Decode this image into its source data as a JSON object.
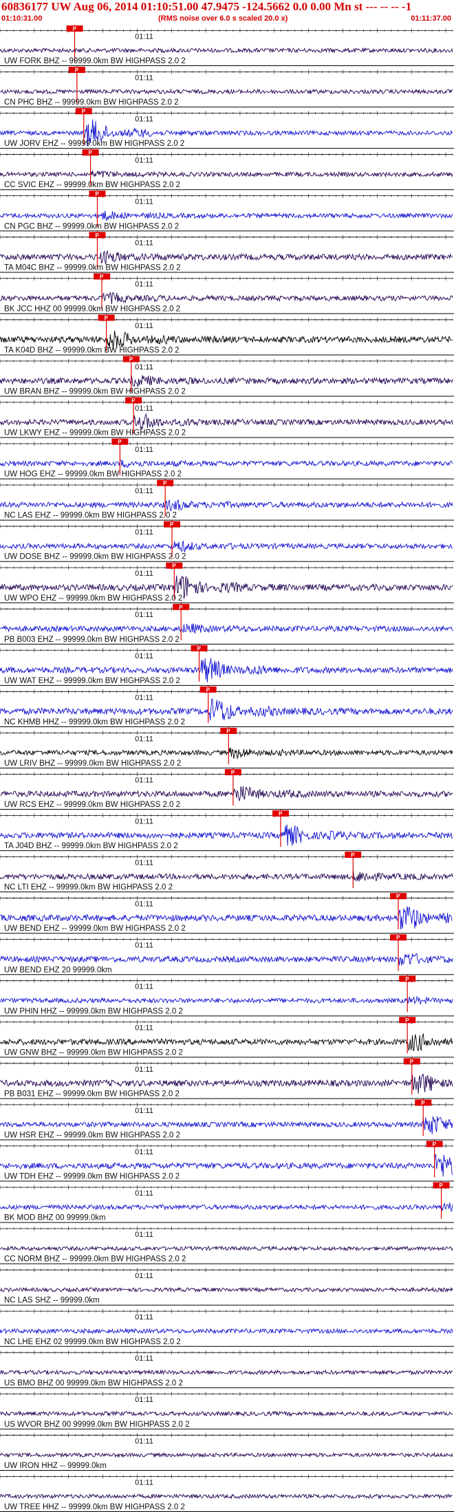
{
  "header": {
    "title": "60836177 UW Aug 06, 2014 01:10:51.00   47.9475 -124.5662  0.0 0.00 Mn st --- -- --   -1",
    "start_time": "01:10:31.00",
    "note": "(RMS noise over 6.0 s scaled 20.0 x)",
    "end_time": "01:11:37.00"
  },
  "colors": {
    "blue": "#1010d0",
    "dark": "#200050",
    "black": "#000000",
    "pick": "#e00000"
  },
  "chart_data": {
    "type": "line",
    "time_range": [
      "01:10:31.00",
      "01:11:37.00"
    ],
    "minute_mark": "01:11",
    "pick_label": "P",
    "traces": [
      {
        "label": "UW FORK BHZ -- 99999.0km BW  HIGHPASS  2.0  2",
        "color": "dark",
        "pick": 0.165,
        "burst": 0.0,
        "amp": 0.1
      },
      {
        "label": "CN PHC BHZ -- 99999.0km BW  HIGHPASS  2.0  2",
        "color": "dark",
        "pick": 0.17,
        "burst": 0.0,
        "amp": 0.1
      },
      {
        "label": "UW JORV EHZ -- 99999.0km BW  HIGHPASS  2.0  2",
        "color": "blue",
        "pick": 0.185,
        "burst": 1.0,
        "amp": 0.12
      },
      {
        "label": "CC SVIC EHZ -- 99999.0km BW  HIGHPASS  2.0  2",
        "color": "dark",
        "pick": 0.2,
        "burst": 0.15,
        "amp": 0.12
      },
      {
        "label": "CN PGC BHZ -- 99999.0km BW  HIGHPASS  2.0  2",
        "color": "blue",
        "pick": 0.215,
        "burst": 0.25,
        "amp": 0.15
      },
      {
        "label": "TA M04C BHZ -- 99999.0km BW  HIGHPASS  2.0  2",
        "color": "dark",
        "pick": 0.215,
        "burst": 0.35,
        "amp": 0.3
      },
      {
        "label": "BK JCC HHZ 00 99999.0km BW  HIGHPASS  2.0  2",
        "color": "dark",
        "pick": 0.225,
        "burst": 0.3,
        "amp": 0.2
      },
      {
        "label": "TA K04D BHZ -- 99999.0km BW  HIGHPASS  2.0  2",
        "color": "black",
        "pick": 0.235,
        "burst": 0.6,
        "amp": 0.35
      },
      {
        "label": "UW BRAN BHZ -- 99999.0km BW  HIGHPASS  2.0  2",
        "color": "dark",
        "pick": 0.29,
        "burst": 0.3,
        "amp": 0.3
      },
      {
        "label": "UW LKWY EHZ -- 99999.0km BW  HIGHPASS  2.0  2",
        "color": "dark",
        "pick": 0.295,
        "burst": 0.5,
        "amp": 0.25
      },
      {
        "label": "UW HOG EHZ -- 99999.0km BW  HIGHPASS  2.0  2",
        "color": "blue",
        "pick": 0.265,
        "burst": 0.15,
        "amp": 0.2
      },
      {
        "label": "NC LAS EHZ -- 99999.0km BW  HIGHPASS  2.0  2",
        "color": "blue",
        "pick": 0.365,
        "burst": 0.3,
        "amp": 0.25
      },
      {
        "label": "UW DOSE BHZ -- 99999.0km BW  HIGHPASS  2.0  2",
        "color": "blue",
        "pick": 0.38,
        "burst": 0.3,
        "amp": 0.2
      },
      {
        "label": "UW WPO EHZ -- 99999.0km BW  HIGHPASS  2.0  2",
        "color": "dark",
        "pick": 0.385,
        "burst": 0.9,
        "amp": 0.35
      },
      {
        "label": "PB B003 EHZ -- 99999.0km BW  HIGHPASS  2.0  2",
        "color": "blue",
        "pick": 0.4,
        "burst": 0.25,
        "amp": 0.25
      },
      {
        "label": "UW WAT EHZ -- 99999.0km BW  HIGHPASS  2.0  2",
        "color": "blue",
        "pick": 0.44,
        "burst": 0.9,
        "amp": 0.3
      },
      {
        "label": "NC KHMB HHZ -- 99999.0km BW  HIGHPASS  2.0  2",
        "color": "blue",
        "pick": 0.46,
        "burst": 0.9,
        "amp": 0.35
      },
      {
        "label": "UW LRIV BHZ -- 99999.0km BW  HIGHPASS  2.0  2",
        "color": "black",
        "pick": 0.505,
        "burst": 0.3,
        "amp": 0.2
      },
      {
        "label": "UW RCS EHZ -- 99999.0km BW  HIGHPASS  2.0  2",
        "color": "dark",
        "pick": 0.515,
        "burst": 0.5,
        "amp": 0.3
      },
      {
        "label": "TA J04D BHZ -- 99999.0km BW  HIGHPASS  2.0  2",
        "color": "blue",
        "pick": 0.62,
        "burst": 0.7,
        "amp": 0.3
      },
      {
        "label": "NC LTI EHZ -- 99999.0km BW  HIGHPASS  2.0  2",
        "color": "dark",
        "pick": 0.78,
        "burst": 0.3,
        "amp": 0.25
      },
      {
        "label": "UW BEND EHZ -- 99999.0km BW  HIGHPASS  2.0  2",
        "color": "blue",
        "pick": 0.88,
        "burst": 0.9,
        "amp": 0.35
      },
      {
        "label": "UW BEND EHZ 20 99999.0km",
        "color": "blue",
        "pick": 0.88,
        "burst": 0.4,
        "amp": 0.3
      },
      {
        "label": "UW PHIN HHZ -- 99999.0km BW  HIGHPASS  2.0  2",
        "color": "blue",
        "pick": 0.9,
        "burst": 0.15,
        "amp": 0.15
      },
      {
        "label": "UW GNW BHZ -- 99999.0km BW  HIGHPASS  2.0  2",
        "color": "black",
        "pick": 0.9,
        "burst": 0.6,
        "amp": 0.3
      },
      {
        "label": "PB B031 EHZ -- 99999.0km BW  HIGHPASS  2.0  2",
        "color": "dark",
        "pick": 0.91,
        "burst": 0.7,
        "amp": 0.35
      },
      {
        "label": "UW HSR EHZ -- 99999.0km BW  HIGHPASS  2.0  2",
        "color": "blue",
        "pick": 0.935,
        "burst": 0.7,
        "amp": 0.2
      },
      {
        "label": "UW TDH EHZ -- 99999.0km BW  HIGHPASS  2.0  2",
        "color": "blue",
        "pick": 0.96,
        "burst": 0.9,
        "amp": 0.3
      },
      {
        "label": "BK MOD BHZ 00 99999.0km",
        "color": "blue",
        "pick": 0.975,
        "burst": 0.2,
        "amp": 0.15
      },
      {
        "label": "CC NORM BHZ -- 99999.0km BW  HIGHPASS  2.0  2",
        "color": "dark",
        "pick": null,
        "burst": 0.0,
        "amp": 0.06
      },
      {
        "label": "NC LAS SHZ -- 99999.0km",
        "color": "dark",
        "pick": null,
        "burst": 0.0,
        "amp": 0.06
      },
      {
        "label": "NC LHE EHZ 02 99999.0km BW  HIGHPASS  2.0  2",
        "color": "blue",
        "pick": null,
        "burst": 0.0,
        "amp": 0.12
      },
      {
        "label": "US BMO BHZ 00 99999.0km BW  HIGHPASS  2.0  2",
        "color": "dark",
        "pick": null,
        "burst": 0.0,
        "amp": 0.08
      },
      {
        "label": "US WVOR BHZ 00 99999.0km BW  HIGHPASS  2.0  2",
        "color": "dark",
        "pick": null,
        "burst": 0.0,
        "amp": 0.1
      },
      {
        "label": "UW IRON HHZ -- 99999.0km",
        "color": "dark",
        "pick": null,
        "burst": 0.0,
        "amp": 0.06
      },
      {
        "label": "UW TREE HHZ -- 99999.0km BW  HIGHPASS  2.0  2",
        "color": "dark",
        "pick": null,
        "burst": 0.0,
        "amp": 0.08
      }
    ]
  }
}
